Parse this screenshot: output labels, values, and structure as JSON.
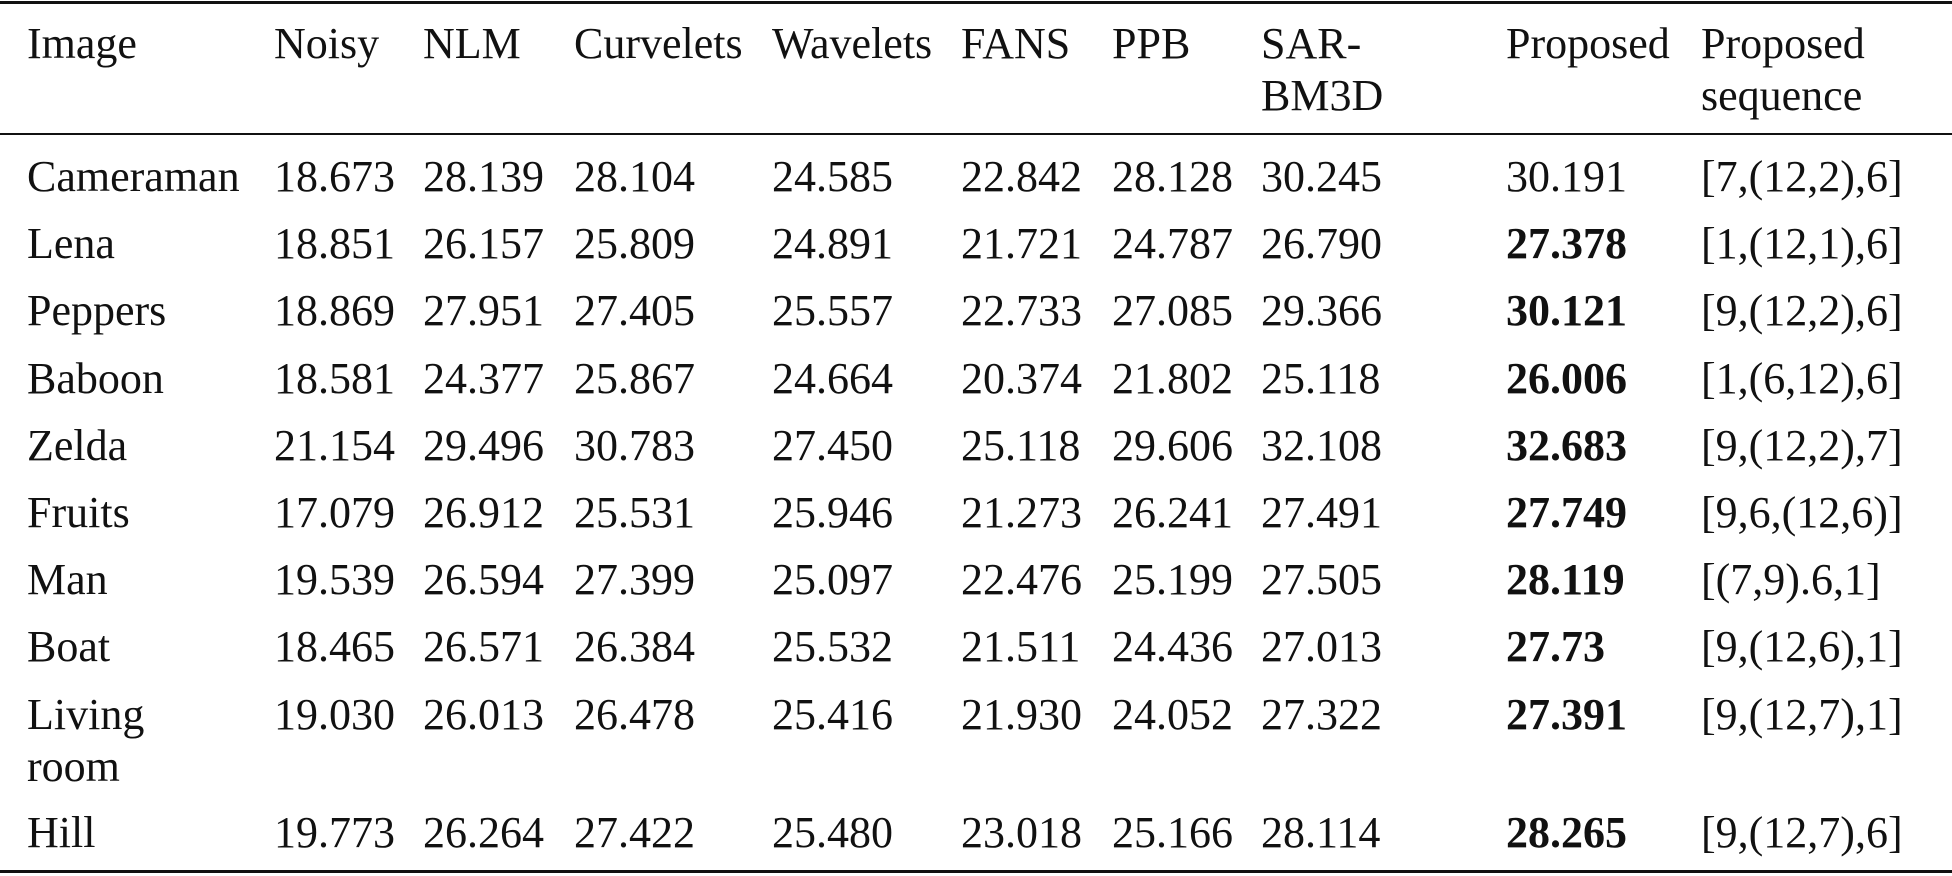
{
  "table": {
    "header": [
      "Image",
      "Noisy",
      "NLM",
      "Curvelets",
      "Wavelets",
      "FANS",
      "PPB",
      "SAR-BM3D",
      "Proposed",
      "Proposed sequence"
    ],
    "rows": [
      [
        "Cameraman",
        "18.673",
        "28.139",
        "28.104",
        "24.585",
        "22.842",
        "28.128",
        "30.245",
        "30.191",
        "[7,(12,2),6]"
      ],
      [
        "Lena",
        "18.851",
        "26.157",
        "25.809",
        "24.891",
        "21.721",
        "24.787",
        "26.790",
        "27.378",
        "[1,(12,1),6]"
      ],
      [
        "Peppers",
        "18.869",
        "27.951",
        "27.405",
        "25.557",
        "22.733",
        "27.085",
        "29.366",
        "30.121",
        "[9,(12,2),6]"
      ],
      [
        "Baboon",
        "18.581",
        "24.377",
        "25.867",
        "24.664",
        "20.374",
        "21.802",
        "25.118",
        "26.006",
        "[1,(6,12),6]"
      ],
      [
        "Zelda",
        "21.154",
        "29.496",
        "30.783",
        "27.450",
        "25.118",
        "29.606",
        "32.108",
        "32.683",
        "[9,(12,2),7]"
      ],
      [
        "Fruits",
        "17.079",
        "26.912",
        "25.531",
        "25.946",
        "21.273",
        "26.241",
        "27.491",
        "27.749",
        "[9,6,(12,6)]"
      ],
      [
        "Man",
        "19.539",
        "26.594",
        "27.399",
        "25.097",
        "22.476",
        "25.199",
        "27.505",
        "28.119",
        "[(7,9).6,1]"
      ],
      [
        "Boat",
        "18.465",
        "26.571",
        "26.384",
        "25.532",
        "21.511",
        "24.436",
        "27.013",
        "27.73",
        "[9,(12,6),1]"
      ],
      [
        "Living room",
        "19.030",
        "26.013",
        "26.478",
        "25.416",
        "21.930",
        "24.052",
        "27.322",
        "27.391",
        "[9,(12,7),1]"
      ],
      [
        "Hill",
        "19.773",
        "26.264",
        "27.422",
        "25.480",
        "23.018",
        "25.166",
        "28.114",
        "28.265",
        "[9,(12,7),6]"
      ]
    ]
  }
}
